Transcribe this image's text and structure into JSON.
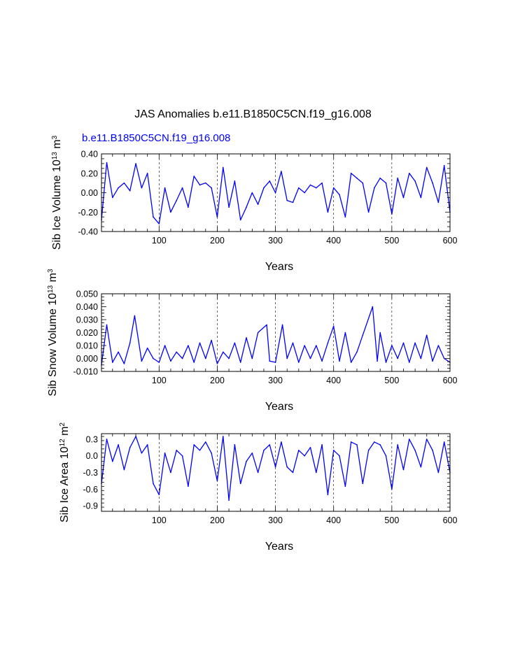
{
  "page": {
    "title": "JAS Anomalies b.e11.B1850C5CN.f19_g16.008",
    "subtitle": "b.e11.B1850C5CN.f19_g16.008",
    "line_color": "#0000ff"
  },
  "chart_data": [
    {
      "type": "line",
      "name": "sib-ice-volume",
      "ylabel_main": "Sib Ice Volume 10",
      "ylabel_sup1": "13",
      "ylabel_mid": " m",
      "ylabel_sup2": "3",
      "xlabel": "Years",
      "xlim": [
        1,
        600
      ],
      "ylim": [
        -0.4,
        0.4
      ],
      "xticks": [
        100,
        200,
        300,
        400,
        500,
        600
      ],
      "yticks": [
        -0.4,
        -0.2,
        0.0,
        0.2,
        0.4
      ],
      "ytick_labels": [
        "-0.40",
        "-0.20",
        "0.00",
        "0.20",
        "0.40"
      ],
      "grid_x": [
        100,
        200,
        300,
        400,
        500
      ],
      "x": [
        1,
        10,
        20,
        30,
        40,
        50,
        60,
        70,
        80,
        90,
        100,
        110,
        120,
        130,
        140,
        150,
        160,
        170,
        180,
        190,
        200,
        210,
        220,
        230,
        240,
        250,
        260,
        270,
        280,
        290,
        300,
        310,
        320,
        330,
        340,
        350,
        360,
        370,
        380,
        390,
        400,
        410,
        420,
        430,
        440,
        450,
        460,
        470,
        480,
        490,
        500,
        510,
        520,
        530,
        540,
        550,
        560,
        570,
        580,
        590,
        600
      ],
      "values": [
        -0.28,
        0.31,
        -0.05,
        0.05,
        0.1,
        0.02,
        0.3,
        0.05,
        0.2,
        -0.25,
        -0.32,
        0.05,
        -0.2,
        -0.08,
        0.05,
        -0.15,
        0.17,
        0.08,
        0.1,
        0.05,
        -0.25,
        0.26,
        -0.15,
        0.12,
        -0.28,
        -0.15,
        0.0,
        -0.12,
        0.05,
        0.12,
        0.0,
        0.22,
        -0.08,
        -0.1,
        0.05,
        0.0,
        0.08,
        0.05,
        0.1,
        -0.2,
        0.05,
        -0.02,
        -0.25,
        0.2,
        0.15,
        0.1,
        -0.2,
        0.05,
        0.15,
        0.1,
        -0.22,
        0.15,
        -0.05,
        0.2,
        0.12,
        -0.05,
        0.26,
        0.1,
        -0.1,
        0.28,
        -0.2
      ]
    },
    {
      "type": "line",
      "name": "sib-snow-volume",
      "ylabel_main": "Sib Snow Volume 10",
      "ylabel_sup1": "13",
      "ylabel_mid": " m",
      "ylabel_sup2": "3",
      "xlabel": "Years",
      "xlim": [
        1,
        600
      ],
      "ylim": [
        -0.01,
        0.05
      ],
      "xticks": [
        100,
        200,
        300,
        400,
        500,
        600
      ],
      "yticks": [
        -0.01,
        0.0,
        0.01,
        0.02,
        0.03,
        0.04,
        0.05
      ],
      "ytick_labels": [
        "-0.010",
        "0.000",
        "0.010",
        "0.020",
        "0.030",
        "0.040",
        "0.050"
      ],
      "grid_x": [
        100,
        200,
        300,
        400,
        500
      ],
      "x": [
        1,
        10,
        20,
        30,
        40,
        50,
        58,
        70,
        80,
        90,
        100,
        110,
        120,
        130,
        140,
        150,
        160,
        170,
        180,
        190,
        200,
        210,
        220,
        230,
        240,
        250,
        260,
        270,
        285,
        290,
        300,
        312,
        320,
        330,
        340,
        350,
        360,
        370,
        380,
        390,
        400,
        410,
        420,
        430,
        440,
        450,
        467,
        475,
        480,
        490,
        500,
        510,
        520,
        530,
        540,
        550,
        560,
        570,
        580,
        590,
        600
      ],
      "values": [
        -0.005,
        0.026,
        -0.003,
        0.005,
        -0.004,
        0.012,
        0.033,
        -0.002,
        0.008,
        0.0,
        -0.003,
        0.01,
        -0.002,
        0.005,
        0.0,
        0.01,
        -0.003,
        0.012,
        0.0,
        0.014,
        -0.004,
        0.005,
        0.0,
        0.012,
        -0.003,
        0.016,
        0.0,
        0.02,
        0.026,
        -0.002,
        -0.003,
        0.026,
        0.0,
        0.012,
        -0.003,
        0.01,
        0.0,
        0.01,
        -0.002,
        0.012,
        0.025,
        -0.002,
        0.02,
        -0.003,
        0.005,
        0.018,
        0.04,
        -0.002,
        0.02,
        -0.003,
        0.01,
        0.0,
        0.012,
        -0.003,
        0.012,
        0.0,
        0.018,
        -0.002,
        0.01,
        0.0,
        -0.003
      ]
    },
    {
      "type": "line",
      "name": "sib-ice-area",
      "ylabel_main": "Sib Ice Area 10",
      "ylabel_sup1": "12",
      "ylabel_mid": " m",
      "ylabel_sup2": "2",
      "xlabel": "Years",
      "xlim": [
        1,
        600
      ],
      "ylim": [
        -1.0,
        0.4
      ],
      "xticks": [
        100,
        200,
        300,
        400,
        500,
        600
      ],
      "yticks": [
        -0.9,
        -0.6,
        -0.3,
        0.0,
        0.3
      ],
      "ytick_labels": [
        "-0.9",
        "-0.6",
        "-0.3",
        "0.0",
        "0.3"
      ],
      "grid_x": [
        100,
        200,
        300,
        400,
        500
      ],
      "x": [
        1,
        10,
        20,
        30,
        40,
        50,
        60,
        70,
        80,
        90,
        100,
        110,
        120,
        130,
        140,
        150,
        160,
        170,
        180,
        190,
        200,
        210,
        220,
        230,
        240,
        250,
        260,
        270,
        280,
        290,
        300,
        310,
        320,
        330,
        340,
        350,
        360,
        370,
        380,
        390,
        400,
        410,
        420,
        430,
        440,
        450,
        460,
        470,
        480,
        490,
        500,
        510,
        520,
        530,
        540,
        550,
        560,
        570,
        580,
        590,
        600
      ],
      "values": [
        -0.5,
        0.3,
        -0.1,
        0.2,
        -0.25,
        0.15,
        0.35,
        0.05,
        0.2,
        -0.5,
        -0.7,
        0.05,
        -0.3,
        0.1,
        0.0,
        -0.55,
        0.2,
        0.1,
        0.25,
        0.05,
        -0.45,
        0.35,
        -0.8,
        0.2,
        -0.5,
        -0.1,
        0.05,
        -0.3,
        0.1,
        0.2,
        -0.2,
        0.25,
        -0.2,
        -0.3,
        0.1,
        0.0,
        0.15,
        -0.3,
        0.2,
        -0.7,
        0.1,
        0.0,
        -0.55,
        0.25,
        0.2,
        -0.5,
        0.1,
        0.25,
        0.2,
        0.0,
        -0.6,
        0.2,
        -0.25,
        0.3,
        0.1,
        -0.2,
        0.3,
        0.1,
        -0.3,
        0.25,
        -0.3
      ]
    }
  ]
}
